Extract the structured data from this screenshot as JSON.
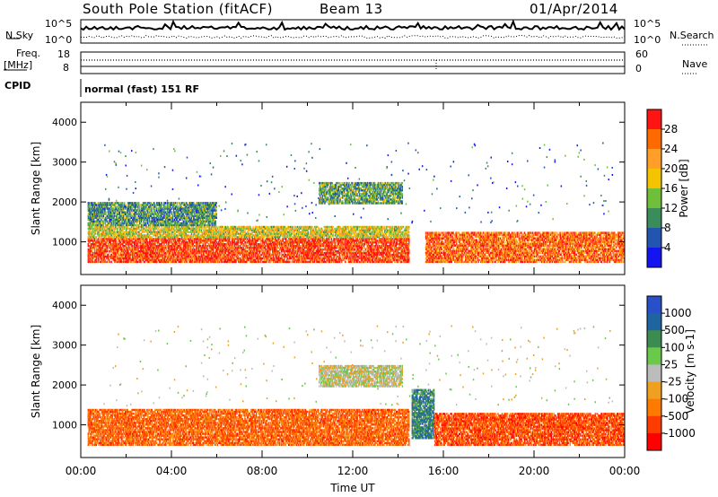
{
  "header": {
    "station": "South Pole Station (fitACF)",
    "beam": "Beam 13",
    "date": "01/Apr/2014"
  },
  "top_panels": {
    "nsky_label": "N.Sky",
    "nsearch_label": "N.Search",
    "noise_ticks": [
      "10^5",
      "10^0"
    ],
    "freq_label": "Freq.",
    "freq_unit": "[MHz]",
    "freq_ticks": [
      "18",
      "8"
    ],
    "nave_label": "Nave",
    "nave_ticks": [
      "60",
      "0"
    ],
    "cpid_label": "CPID",
    "cpid_value": "normal (fast) 151 RF"
  },
  "chart_data": [
    {
      "type": "heatmap",
      "name": "power",
      "xlabel": "",
      "ylabel": "Slant Range [km]",
      "xlim": [
        0,
        24
      ],
      "ylim": [
        180,
        4500
      ],
      "yticks": [
        "1000",
        "2000",
        "3000",
        "4000"
      ],
      "colorbar": {
        "label": "Power [dB]",
        "ticks": [
          "28",
          "24",
          "20",
          "16",
          "12",
          "8",
          "4"
        ],
        "colors": [
          "#ff1414",
          "#ff6a00",
          "#ff9f2a",
          "#f5c400",
          "#6fbf3a",
          "#3a8c5a",
          "#2255b0",
          "#1414f0"
        ]
      },
      "bands": [
        {
          "t0": 0.3,
          "t1": 14.5,
          "r0": 480,
          "r1": 1100,
          "level": 0.95
        },
        {
          "t0": 0.3,
          "t1": 14.5,
          "r0": 1100,
          "r1": 1400,
          "level": 0.55
        },
        {
          "t0": 10.5,
          "t1": 14.2,
          "r0": 1950,
          "r1": 2500,
          "level": 0.35
        },
        {
          "t0": 15.2,
          "t1": 24.0,
          "r0": 480,
          "r1": 1250,
          "level": 0.85
        },
        {
          "t0": 0.3,
          "t1": 6.0,
          "r0": 1400,
          "r1": 2000,
          "level": 0.3
        }
      ]
    },
    {
      "type": "heatmap",
      "name": "velocity",
      "xlabel": "Time UT",
      "ylabel": "Slant Range [km]",
      "xlim": [
        0,
        24
      ],
      "ylim": [
        180,
        4500
      ],
      "xticks": [
        "00:00",
        "04:00",
        "08:00",
        "12:00",
        "16:00",
        "20:00",
        "00:00"
      ],
      "yticks": [
        "1000",
        "2000",
        "3000",
        "4000"
      ],
      "colorbar": {
        "label": "Velocity [m s-1]",
        "ticks": [
          "1000",
          "500",
          "100",
          "25",
          "-25",
          "-100",
          "-500",
          "-1000"
        ],
        "colors": [
          "#2850c8",
          "#1e64a0",
          "#3c8c50",
          "#6ac84a",
          "#bcbcbc",
          "#f0a020",
          "#ff7a00",
          "#ff3c00",
          "#ff0000"
        ]
      },
      "bands": [
        {
          "t0": 0.3,
          "t1": 14.5,
          "r0": 480,
          "r1": 1400,
          "level": -0.6
        },
        {
          "t0": 10.5,
          "t1": 14.2,
          "r0": 1950,
          "r1": 2500,
          "level": 0.0
        },
        {
          "t0": 14.6,
          "t1": 15.6,
          "r0": 650,
          "r1": 1900,
          "level": 0.6
        },
        {
          "t0": 15.6,
          "t1": 24.0,
          "r0": 480,
          "r1": 1300,
          "level": -0.7
        }
      ]
    }
  ]
}
